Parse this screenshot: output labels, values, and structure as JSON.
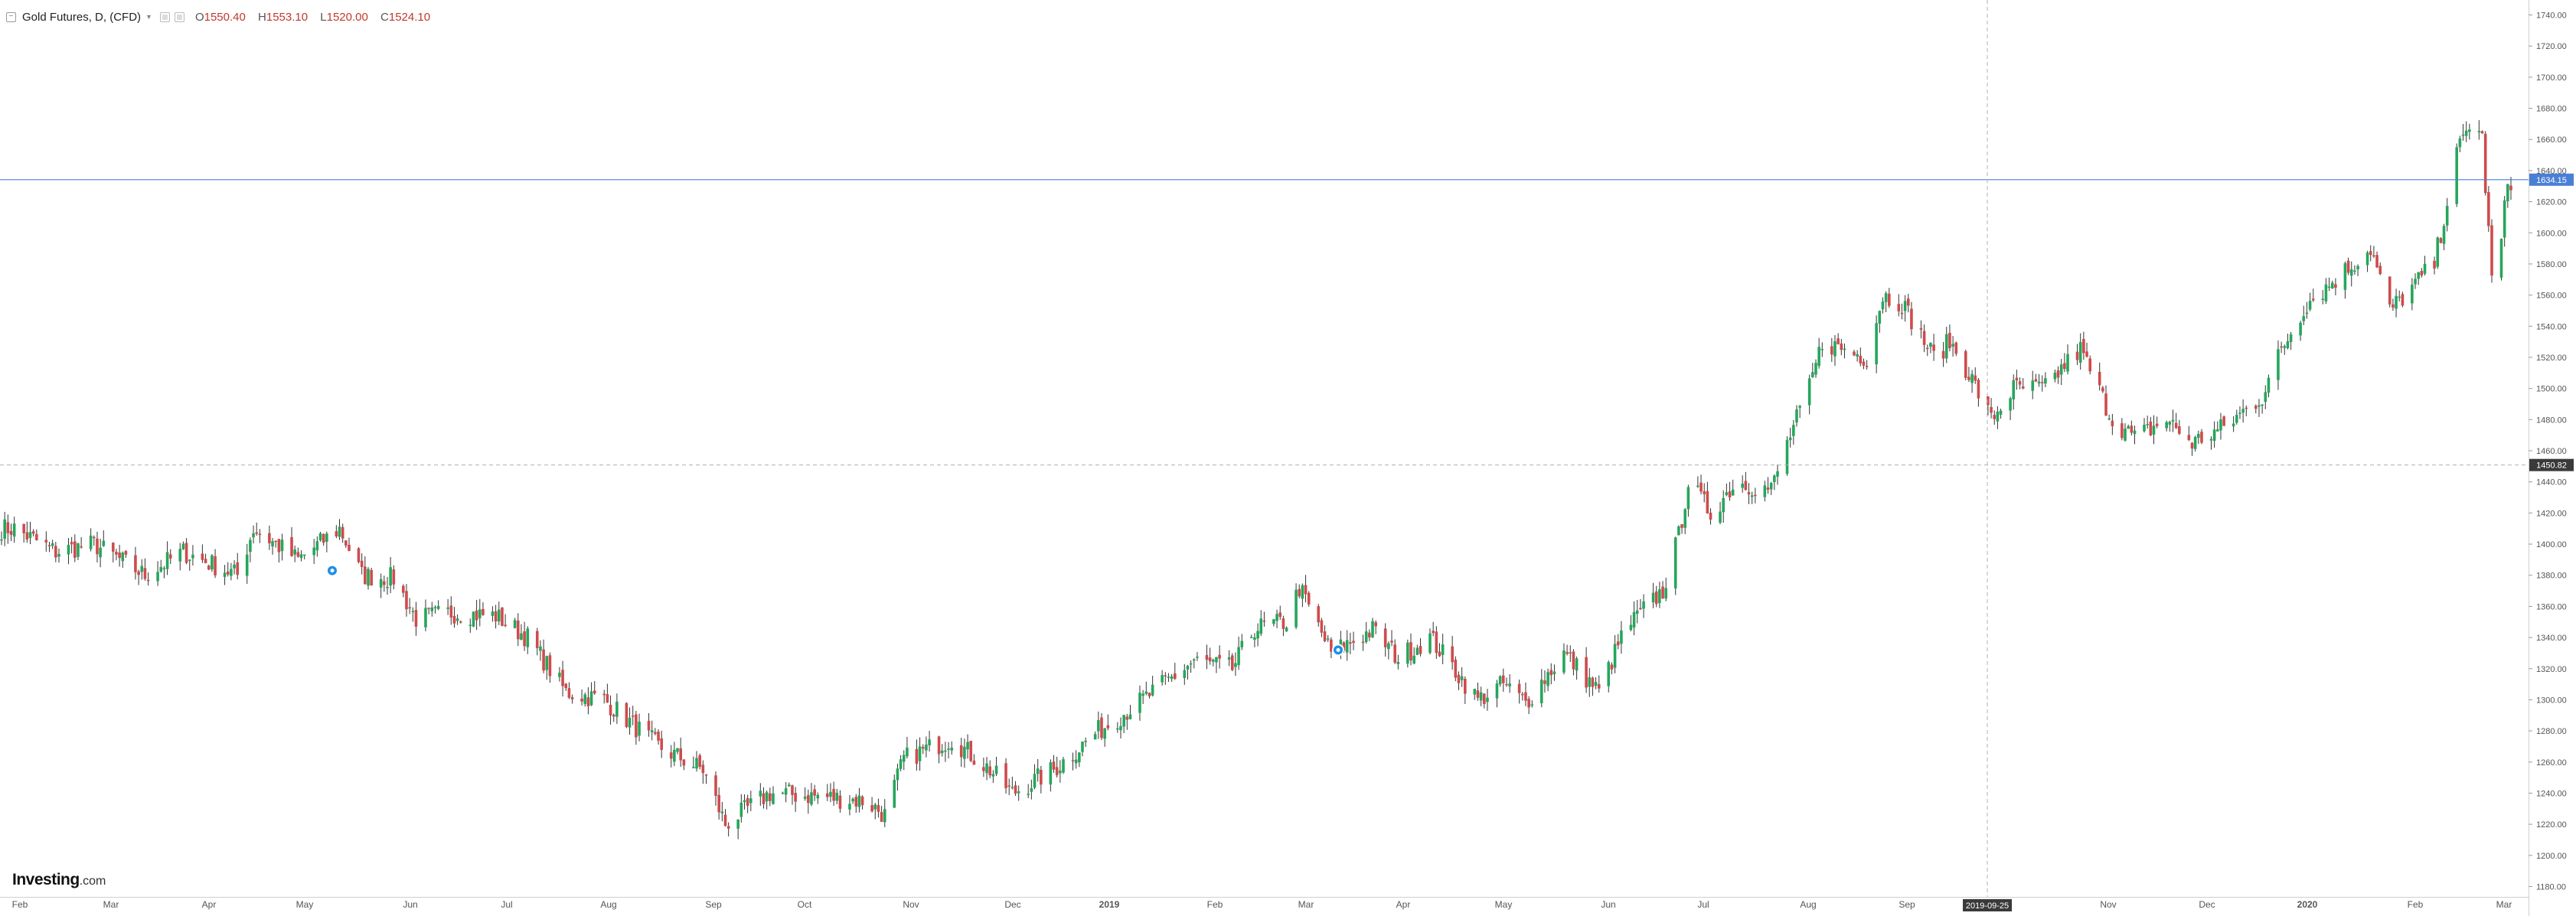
{
  "legend": {
    "title": "Gold Futures, D, (CFD)",
    "o_label": "O",
    "o_value": "1550.40",
    "h_label": "H",
    "h_value": "1553.10",
    "l_label": "L",
    "l_value": "1520.00",
    "c_label": "C",
    "c_value": "1524.10",
    "collapse_icon": "minus-box-icon",
    "caret_icon": "chevron-down-icon"
  },
  "logo": {
    "brand": "Investing",
    "domain": ".com"
  },
  "colors": {
    "up": "#26a65b",
    "down": "#cf4b4b",
    "current_price_line": "#4a7fd6",
    "crosshair": "#b0b0b0",
    "axis_text": "#555555",
    "event_marker": "#1e90e6"
  },
  "chart_data": {
    "type": "candlestick",
    "instrument": "Gold Futures, D, (CFD)",
    "ylim": [
      1180,
      1740
    ],
    "y_ticks": [
      "1180.00",
      "1200.00",
      "1220.00",
      "1240.00",
      "1260.00",
      "1280.00",
      "1300.00",
      "1320.00",
      "1340.00",
      "1360.00",
      "1380.00",
      "1400.00",
      "1420.00",
      "1440.00",
      "1460.00",
      "1480.00",
      "1500.00",
      "1520.00",
      "1540.00",
      "1560.00",
      "1580.00",
      "1600.00",
      "1620.00",
      "1640.00",
      "1660.00",
      "1680.00",
      "1700.00",
      "1720.00",
      "1740.00"
    ],
    "x_ticks": [
      "Feb",
      "Mar",
      "Apr",
      "May",
      "Jun",
      "Jul",
      "Aug",
      "Sep",
      "Oct",
      "Nov",
      "Dec",
      "2019",
      "Feb",
      "Mar",
      "Apr",
      "May",
      "Jun",
      "Jul",
      "Aug",
      "Sep",
      "2019-09-25",
      "Nov",
      "Dec",
      "2020",
      "Feb",
      "Mar"
    ],
    "x_tick_bold": [
      false,
      false,
      false,
      false,
      false,
      false,
      false,
      false,
      false,
      false,
      false,
      true,
      false,
      false,
      false,
      false,
      false,
      false,
      false,
      false,
      false,
      false,
      false,
      true,
      false,
      false
    ],
    "current_price": {
      "value": 1634.15,
      "label": "1634.15"
    },
    "crosshair": {
      "date_label": "2019-09-25",
      "price_value": 1450.82,
      "price_label": "1450.82"
    },
    "event_markers": [
      {
        "date": "2018-05",
        "price": 1383
      },
      {
        "date": "2019-03",
        "price": 1332
      }
    ],
    "series_anchors": [
      {
        "date": "2018-01-26",
        "close": 1410
      },
      {
        "date": "2018-02-08",
        "close": 1395
      },
      {
        "date": "2018-02-20",
        "close": 1400
      },
      {
        "date": "2018-03-08",
        "close": 1380
      },
      {
        "date": "2018-03-20",
        "close": 1395
      },
      {
        "date": "2018-04-06",
        "close": 1380
      },
      {
        "date": "2018-04-11",
        "close": 1410
      },
      {
        "date": "2018-04-25",
        "close": 1390
      },
      {
        "date": "2018-05-08",
        "close": 1410
      },
      {
        "date": "2018-05-15",
        "close": 1380
      },
      {
        "date": "2018-05-25",
        "close": 1378
      },
      {
        "date": "2018-06-01",
        "close": 1352
      },
      {
        "date": "2018-06-12",
        "close": 1356
      },
      {
        "date": "2018-06-26",
        "close": 1354
      },
      {
        "date": "2018-07-06",
        "close": 1340
      },
      {
        "date": "2018-07-18",
        "close": 1305
      },
      {
        "date": "2018-07-30",
        "close": 1300
      },
      {
        "date": "2018-08-16",
        "close": 1270
      },
      {
        "date": "2018-08-30",
        "close": 1255
      },
      {
        "date": "2018-09-06",
        "close": 1220
      },
      {
        "date": "2018-09-20",
        "close": 1240
      },
      {
        "date": "2018-10-05",
        "close": 1238
      },
      {
        "date": "2018-10-20",
        "close": 1235
      },
      {
        "date": "2018-10-26",
        "close": 1226
      },
      {
        "date": "2018-11-01",
        "close": 1262
      },
      {
        "date": "2018-11-16",
        "close": 1275
      },
      {
        "date": "2018-11-28",
        "close": 1255
      },
      {
        "date": "2018-12-05",
        "close": 1240
      },
      {
        "date": "2018-12-18",
        "close": 1255
      },
      {
        "date": "2019-01-01",
        "close": 1280
      },
      {
        "date": "2019-01-15",
        "close": 1300
      },
      {
        "date": "2019-01-31",
        "close": 1325
      },
      {
        "date": "2019-02-12",
        "close": 1320
      },
      {
        "date": "2019-02-19",
        "close": 1346
      },
      {
        "date": "2019-03-01",
        "close": 1350
      },
      {
        "date": "2019-03-05",
        "close": 1372
      },
      {
        "date": "2019-03-15",
        "close": 1330
      },
      {
        "date": "2019-03-28",
        "close": 1345
      },
      {
        "date": "2019-04-05",
        "close": 1327
      },
      {
        "date": "2019-04-15",
        "close": 1340
      },
      {
        "date": "2019-04-30",
        "close": 1300
      },
      {
        "date": "2019-05-08",
        "close": 1310
      },
      {
        "date": "2019-05-15",
        "close": 1298
      },
      {
        "date": "2019-05-27",
        "close": 1330
      },
      {
        "date": "2019-06-07",
        "close": 1305
      },
      {
        "date": "2019-06-15",
        "close": 1345
      },
      {
        "date": "2019-06-27",
        "close": 1370
      },
      {
        "date": "2019-07-02",
        "close": 1405
      },
      {
        "date": "2019-07-05",
        "close": 1440
      },
      {
        "date": "2019-07-12",
        "close": 1420
      },
      {
        "date": "2019-07-20",
        "close": 1440
      },
      {
        "date": "2019-07-31",
        "close": 1435
      },
      {
        "date": "2019-08-06",
        "close": 1470
      },
      {
        "date": "2019-08-12",
        "close": 1500
      },
      {
        "date": "2019-08-16",
        "close": 1530
      },
      {
        "date": "2019-08-30",
        "close": 1520
      },
      {
        "date": "2019-09-04",
        "close": 1560
      },
      {
        "date": "2019-09-10",
        "close": 1555
      },
      {
        "date": "2019-09-20",
        "close": 1520
      },
      {
        "date": "2019-09-25",
        "close": 1530
      },
      {
        "date": "2019-10-01",
        "close": 1510
      },
      {
        "date": "2019-10-08",
        "close": 1480
      },
      {
        "date": "2019-10-15",
        "close": 1500
      },
      {
        "date": "2019-10-25",
        "close": 1500
      },
      {
        "date": "2019-10-31",
        "close": 1515
      },
      {
        "date": "2019-11-05",
        "close": 1525
      },
      {
        "date": "2019-11-15",
        "close": 1480
      },
      {
        "date": "2019-11-22",
        "close": 1468
      },
      {
        "date": "2019-12-02",
        "close": 1480
      },
      {
        "date": "2019-12-10",
        "close": 1465
      },
      {
        "date": "2019-12-20",
        "close": 1475
      },
      {
        "date": "2020-01-01",
        "close": 1495
      },
      {
        "date": "2020-01-07",
        "close": 1525
      },
      {
        "date": "2020-01-15",
        "close": 1555
      },
      {
        "date": "2020-01-21",
        "close": 1565
      },
      {
        "date": "2020-02-04",
        "close": 1590
      },
      {
        "date": "2020-02-10",
        "close": 1550
      },
      {
        "date": "2020-02-24",
        "close": 1580
      },
      {
        "date": "2020-03-02",
        "close": 1650
      },
      {
        "date": "2020-03-07",
        "close": 1675
      },
      {
        "date": "2020-03-10",
        "close": 1660
      },
      {
        "date": "2020-03-13",
        "close": 1570
      },
      {
        "date": "2020-03-16",
        "close": 1595
      },
      {
        "date": "2020-03-18",
        "close": 1634
      }
    ]
  }
}
